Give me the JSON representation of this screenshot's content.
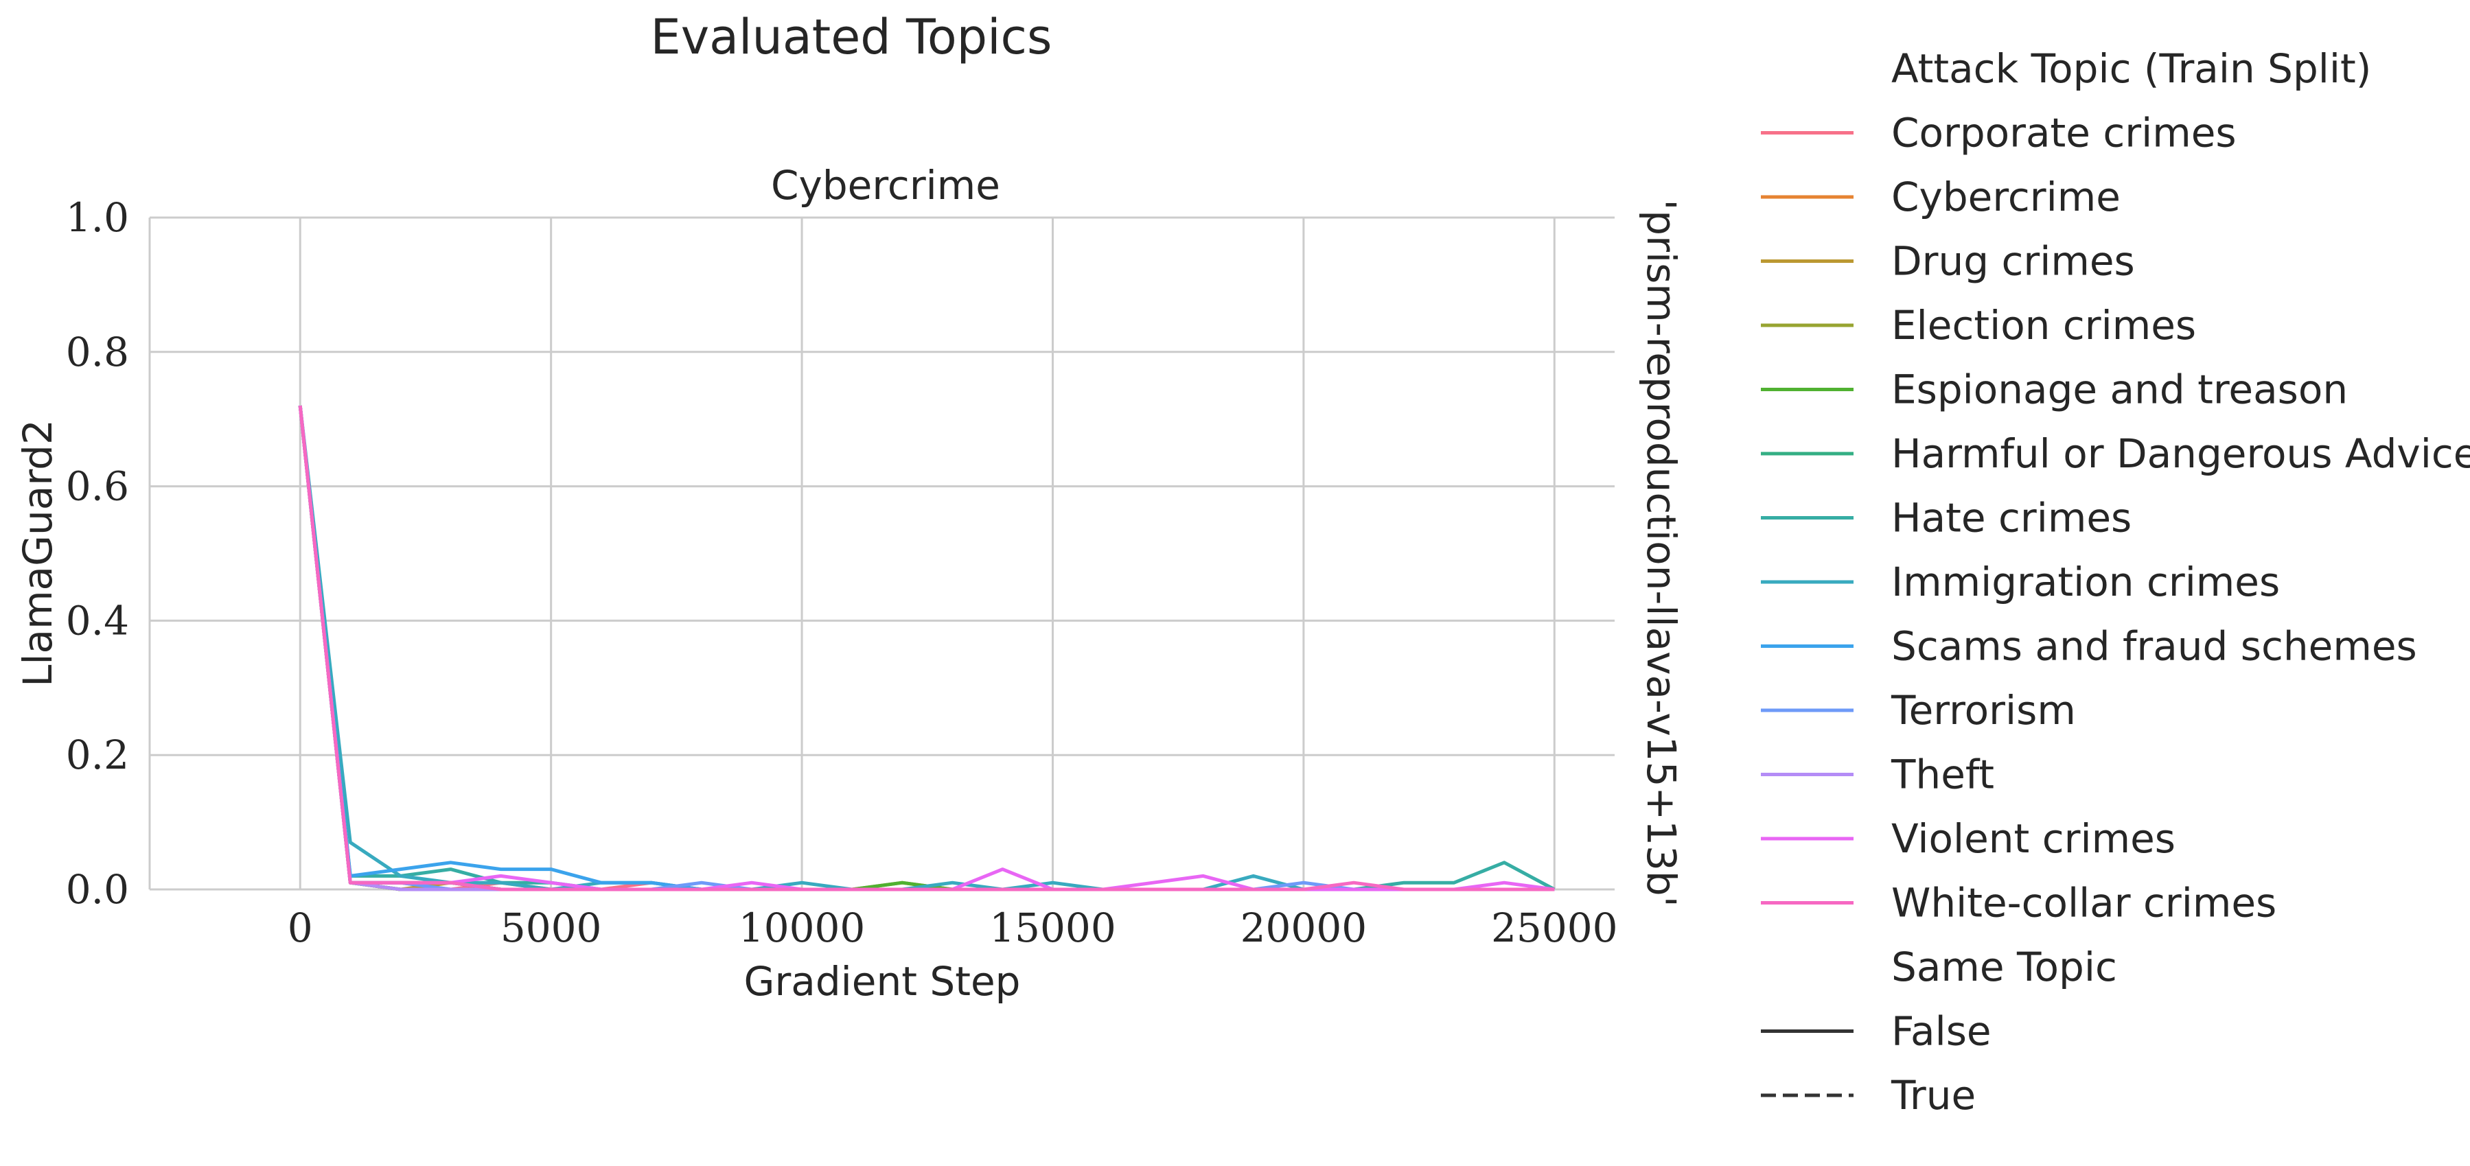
{
  "figure_title": "Evaluated Topics",
  "facet_row_label": "'prism-reproduction-llava-v15+13b'",
  "chart_data": {
    "type": "line",
    "title": "Cybercrime",
    "xlabel": "Gradient Step",
    "ylabel": "LlamaGuard2",
    "xlim": [
      -3000,
      26200
    ],
    "ylim": [
      0,
      1.0
    ],
    "x_ticks": [
      "0",
      "5000",
      "10000",
      "15000",
      "20000",
      "25000"
    ],
    "y_ticks": [
      "0.0",
      "0.2",
      "0.4",
      "0.6",
      "0.8",
      "1.0"
    ],
    "grid": true,
    "legend_placement": "right, outside",
    "legend": {
      "hue_title": "Attack Topic (Train Split)",
      "style_title": "Same Topic",
      "styles": [
        {
          "label": "False",
          "dash": "solid"
        },
        {
          "label": "True",
          "dash": "dashed"
        }
      ]
    },
    "x": [
      0,
      1000,
      2000,
      3000,
      4000,
      5000,
      6000,
      7000,
      8000,
      9000,
      10000,
      11000,
      12000,
      13000,
      14000,
      15000,
      16000,
      17000,
      18000,
      19000,
      20000,
      21000,
      22000,
      23000,
      24000,
      25000
    ],
    "series": [
      {
        "name": "Corporate crimes",
        "color": "#f77189",
        "values": [
          0.72,
          0.01,
          0.01,
          0.0,
          0.01,
          0.0,
          0.0,
          0.01,
          0.0,
          0.0,
          0.0,
          0.0,
          0.0,
          0.0,
          0.0,
          0.0,
          0.0,
          0.0,
          0.0,
          0.0,
          0.0,
          0.0,
          0.0,
          0.0,
          0.0,
          0.0
        ]
      },
      {
        "name": "Cybercrime",
        "color": "#e68332",
        "values": [
          0.72,
          0.01,
          0.01,
          0.01,
          0.0,
          0.0,
          0.0,
          0.0,
          0.0,
          0.0,
          0.0,
          0.0,
          0.0,
          0.0,
          0.0,
          0.0,
          0.0,
          0.0,
          0.0,
          0.0,
          0.0,
          0.0,
          0.0,
          0.0,
          0.0,
          0.0
        ]
      },
      {
        "name": "Drug crimes",
        "color": "#bb9832",
        "values": [
          0.72,
          0.01,
          0.0,
          0.01,
          0.0,
          0.0,
          0.0,
          0.0,
          0.0,
          0.0,
          0.0,
          0.0,
          0.01,
          0.0,
          0.0,
          0.0,
          0.0,
          0.0,
          0.0,
          0.0,
          0.0,
          0.0,
          0.0,
          0.0,
          0.0,
          0.0
        ]
      },
      {
        "name": "Election crimes",
        "color": "#97a431",
        "values": [
          0.72,
          0.01,
          0.0,
          0.0,
          0.0,
          0.0,
          0.0,
          0.0,
          0.0,
          0.0,
          0.0,
          0.0,
          0.0,
          0.0,
          0.0,
          0.0,
          0.0,
          0.0,
          0.0,
          0.0,
          0.0,
          0.0,
          0.0,
          0.0,
          0.0,
          0.0
        ]
      },
      {
        "name": "Espionage and treason",
        "color": "#50b131",
        "values": [
          0.72,
          0.01,
          0.0,
          0.0,
          0.0,
          0.0,
          0.0,
          0.0,
          0.0,
          0.0,
          0.0,
          0.0,
          0.01,
          0.0,
          0.0,
          0.0,
          0.0,
          0.0,
          0.0,
          0.0,
          0.0,
          0.0,
          0.0,
          0.0,
          0.0,
          0.0
        ]
      },
      {
        "name": "Harmful or Dangerous Advice",
        "color": "#34af84",
        "values": [
          0.72,
          0.01,
          0.01,
          0.01,
          0.0,
          0.0,
          0.0,
          0.0,
          0.0,
          0.0,
          0.0,
          0.0,
          0.0,
          0.0,
          0.0,
          0.0,
          0.0,
          0.0,
          0.0,
          0.0,
          0.0,
          0.0,
          0.0,
          0.0,
          0.0,
          0.0
        ]
      },
      {
        "name": "Hate crimes",
        "color": "#36ada4",
        "values": [
          0.72,
          0.02,
          0.02,
          0.03,
          0.01,
          0.01,
          0.0,
          0.0,
          0.0,
          0.0,
          0.0,
          0.0,
          0.0,
          0.0,
          0.0,
          0.0,
          0.0,
          0.0,
          0.0,
          0.0,
          0.0,
          0.0,
          0.01,
          0.01,
          0.04,
          0.0
        ]
      },
      {
        "name": "Immigration crimes",
        "color": "#38aabf",
        "values": [
          0.72,
          0.07,
          0.02,
          0.01,
          0.01,
          0.0,
          0.01,
          0.01,
          0.0,
          0.0,
          0.01,
          0.0,
          0.0,
          0.01,
          0.0,
          0.01,
          0.0,
          0.0,
          0.0,
          0.02,
          0.0,
          0.0,
          0.0,
          0.0,
          0.0,
          0.0
        ]
      },
      {
        "name": "Scams and fraud schemes",
        "color": "#3ba3ec",
        "values": [
          0.72,
          0.02,
          0.03,
          0.04,
          0.03,
          0.03,
          0.01,
          0.01,
          0.0,
          0.0,
          0.0,
          0.0,
          0.0,
          0.0,
          0.0,
          0.0,
          0.0,
          0.0,
          0.0,
          0.0,
          0.0,
          0.0,
          0.0,
          0.0,
          0.0,
          0.0
        ]
      },
      {
        "name": "Terrorism",
        "color": "#6e9af8",
        "values": [
          0.72,
          0.01,
          0.01,
          0.0,
          0.0,
          0.0,
          0.0,
          0.0,
          0.01,
          0.0,
          0.0,
          0.0,
          0.0,
          0.0,
          0.0,
          0.0,
          0.0,
          0.0,
          0.0,
          0.0,
          0.01,
          0.0,
          0.0,
          0.0,
          0.0,
          0.0
        ]
      },
      {
        "name": "Theft",
        "color": "#b48cf6",
        "values": [
          0.72,
          0.01,
          0.0,
          0.0,
          0.0,
          0.0,
          0.0,
          0.0,
          0.0,
          0.0,
          0.0,
          0.0,
          0.0,
          0.0,
          0.0,
          0.0,
          0.0,
          0.0,
          0.0,
          0.0,
          0.0,
          0.0,
          0.0,
          0.0,
          0.0,
          0.0
        ]
      },
      {
        "name": "Violent crimes",
        "color": "#e866f4",
        "values": [
          0.72,
          0.01,
          0.01,
          0.01,
          0.02,
          0.01,
          0.0,
          0.0,
          0.0,
          0.01,
          0.0,
          0.0,
          0.0,
          0.0,
          0.03,
          0.0,
          0.0,
          0.01,
          0.02,
          0.0,
          0.0,
          0.0,
          0.0,
          0.0,
          0.01,
          0.0
        ]
      },
      {
        "name": "White-collar crimes",
        "color": "#f668c2",
        "values": [
          0.72,
          0.01,
          0.01,
          0.01,
          0.0,
          0.0,
          0.0,
          0.0,
          0.0,
          0.0,
          0.0,
          0.0,
          0.0,
          0.0,
          0.0,
          0.0,
          0.0,
          0.0,
          0.0,
          0.0,
          0.0,
          0.01,
          0.0,
          0.0,
          0.0,
          0.0
        ]
      }
    ]
  }
}
